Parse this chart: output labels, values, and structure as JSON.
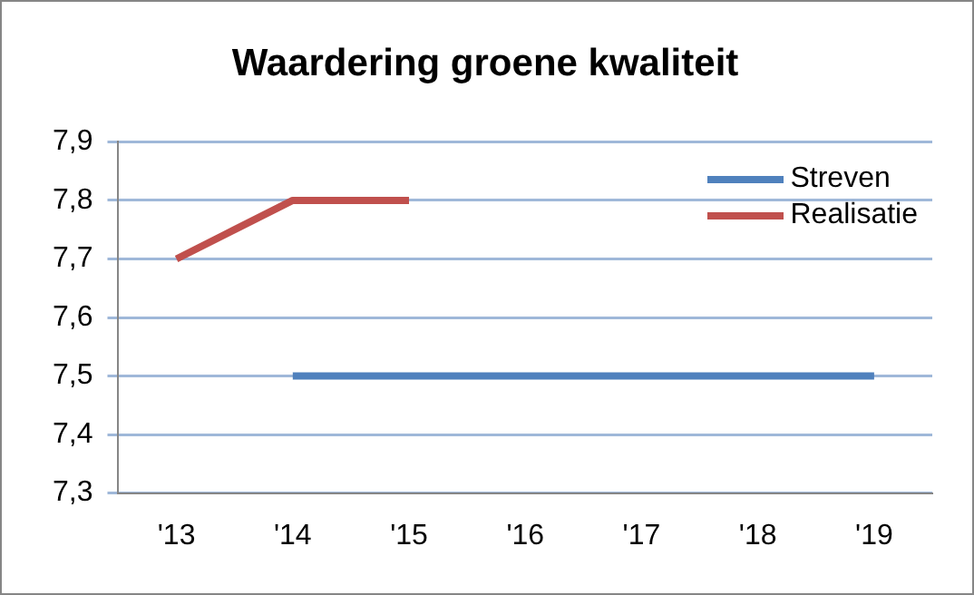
{
  "chart_data": {
    "type": "line",
    "title": "Waardering groene kwaliteit",
    "categories": [
      "'13",
      "'14",
      "'15",
      "'16",
      "'17",
      "'18",
      "'19"
    ],
    "series": [
      {
        "name": "Streven",
        "color": "#4f81bd",
        "values": [
          null,
          7.5,
          7.5,
          7.5,
          7.5,
          7.5,
          7.5
        ]
      },
      {
        "name": "Realisatie",
        "color": "#c0504d",
        "values": [
          7.7,
          7.8,
          7.8,
          null,
          null,
          null,
          null
        ]
      }
    ],
    "ylim": [
      7.3,
      7.9
    ],
    "yticks": [
      {
        "value": 7.3,
        "label": "7,3"
      },
      {
        "value": 7.4,
        "label": "7,4"
      },
      {
        "value": 7.5,
        "label": "7,5"
      },
      {
        "value": 7.6,
        "label": "7,6"
      },
      {
        "value": 7.7,
        "label": "7,7"
      },
      {
        "value": 7.8,
        "label": "7,8"
      },
      {
        "value": 7.9,
        "label": "7,9"
      }
    ],
    "grid": "y",
    "legend": "top right",
    "marker": "none",
    "line_style": "solid"
  }
}
